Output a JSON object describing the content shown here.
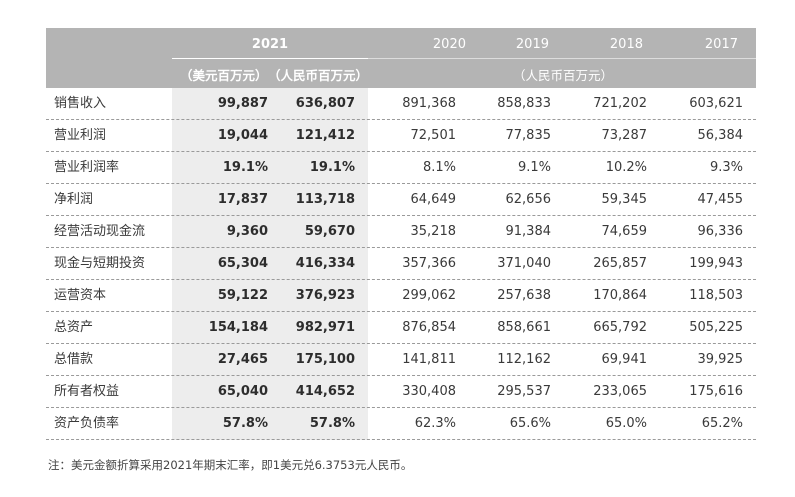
{
  "table": {
    "header": {
      "year_2021": "2021",
      "unit_usd": "（美元百万元）",
      "unit_rmb_2021": "（人民币百万元）",
      "years_prev": [
        "2020",
        "2019",
        "2018",
        "2017"
      ],
      "unit_prev": "（人民币百万元）"
    },
    "rows": [
      {
        "label": "销售收入",
        "v": [
          "99,887",
          "636,807",
          "891,368",
          "858,833",
          "721,202",
          "603,621"
        ]
      },
      {
        "label": "营业利润",
        "v": [
          "19,044",
          "121,412",
          "72,501",
          "77,835",
          "73,287",
          "56,384"
        ]
      },
      {
        "label": "营业利润率",
        "v": [
          "19.1%",
          "19.1%",
          "8.1%",
          "9.1%",
          "10.2%",
          "9.3%"
        ]
      },
      {
        "label": "净利润",
        "v": [
          "17,837",
          "113,718",
          "64,649",
          "62,656",
          "59,345",
          "47,455"
        ]
      },
      {
        "label": "经营活动现金流",
        "v": [
          "9,360",
          "59,670",
          "35,218",
          "91,384",
          "74,659",
          "96,336"
        ]
      },
      {
        "label": "现金与短期投资",
        "v": [
          "65,304",
          "416,334",
          "357,366",
          "371,040",
          "265,857",
          "199,943"
        ]
      },
      {
        "label": "运营资本",
        "v": [
          "59,122",
          "376,923",
          "299,062",
          "257,638",
          "170,864",
          "118,503"
        ]
      },
      {
        "label": "总资产",
        "v": [
          "154,184",
          "982,971",
          "876,854",
          "858,661",
          "665,792",
          "505,225"
        ]
      },
      {
        "label": "总借款",
        "v": [
          "27,465",
          "175,100",
          "141,811",
          "112,162",
          "69,941",
          "39,925"
        ]
      },
      {
        "label": "所有者权益",
        "v": [
          "65,040",
          "414,652",
          "330,408",
          "295,537",
          "233,065",
          "175,616"
        ]
      },
      {
        "label": "资产负债率",
        "v": [
          "57.8%",
          "57.8%",
          "62.3%",
          "65.6%",
          "65.0%",
          "65.2%"
        ]
      }
    ]
  },
  "footnote": "注：美元金额折算采用2021年期末汇率，即1美元兑6.3753元人民币。"
}
